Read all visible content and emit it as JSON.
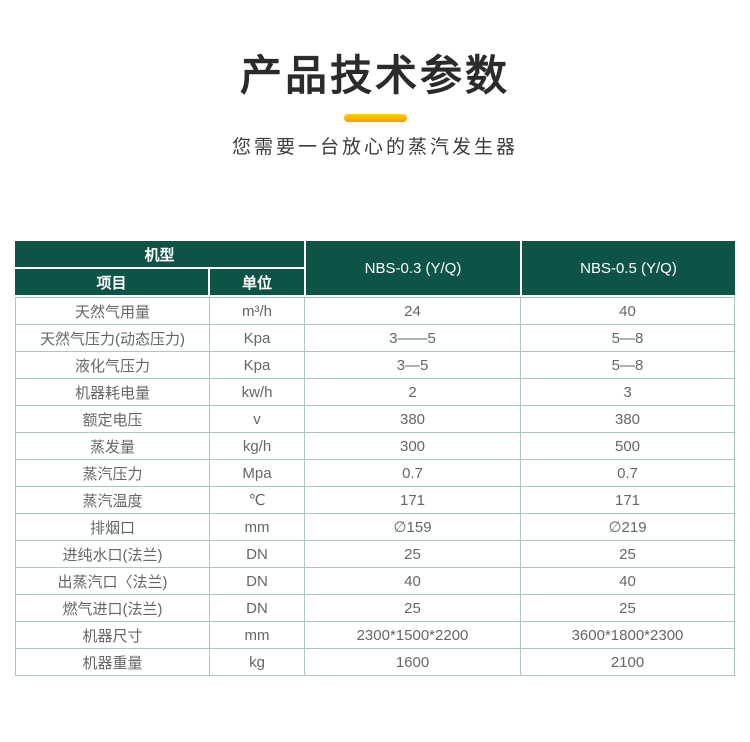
{
  "hero": {
    "title": "产品技术参数",
    "subtitle": "您需要一台放心的蒸汽发生器",
    "accent_bar_colors": [
      "#ffd200",
      "#ff9600"
    ]
  },
  "table": {
    "corner_label": "机型",
    "item_label": "项目",
    "unit_label": "单位",
    "models": [
      "NBS-0.3 (Y/Q)",
      "NBS-0.5 (Y/Q)"
    ],
    "header_bg_color": "#0d5348",
    "header_text_color": "#ffffff",
    "border_color": "#abc7be",
    "body_text_color": "#666666",
    "rows": [
      {
        "item": "天然气用量",
        "unit": "m³/h",
        "values": [
          "24",
          "40"
        ]
      },
      {
        "item": "天然气压力(动态压力)",
        "unit": "Kpa",
        "values": [
          "3——5",
          "5—8"
        ]
      },
      {
        "item": "液化气压力",
        "unit": "Kpa",
        "values": [
          "3—5",
          "5—8"
        ]
      },
      {
        "item": "机器耗电量",
        "unit": "kw/h",
        "values": [
          "2",
          "3"
        ]
      },
      {
        "item": "额定电压",
        "unit": "v",
        "values": [
          "380",
          "380"
        ]
      },
      {
        "item": "蒸发量",
        "unit": "kg/h",
        "values": [
          "300",
          "500"
        ]
      },
      {
        "item": "蒸汽压力",
        "unit": "Mpa",
        "values": [
          "0.7",
          "0.7"
        ]
      },
      {
        "item": "蒸汽温度",
        "unit": "℃",
        "values": [
          "171",
          "171"
        ]
      },
      {
        "item": "排烟口",
        "unit": "mm",
        "values": [
          "∅159",
          "∅219"
        ]
      },
      {
        "item": "进纯水口(法兰)",
        "unit": "DN",
        "values": [
          "25",
          "25"
        ]
      },
      {
        "item": "出蒸汽口〈法兰)",
        "unit": "DN",
        "values": [
          "40",
          "40"
        ]
      },
      {
        "item": "燃气进口(法兰)",
        "unit": "DN",
        "values": [
          "25",
          "25"
        ]
      },
      {
        "item": "机器尺寸",
        "unit": "mm",
        "values": [
          "2300*1500*2200",
          "3600*1800*2300"
        ]
      },
      {
        "item": "机器重量",
        "unit": "kg",
        "values": [
          "1600",
          "2100"
        ]
      }
    ]
  }
}
